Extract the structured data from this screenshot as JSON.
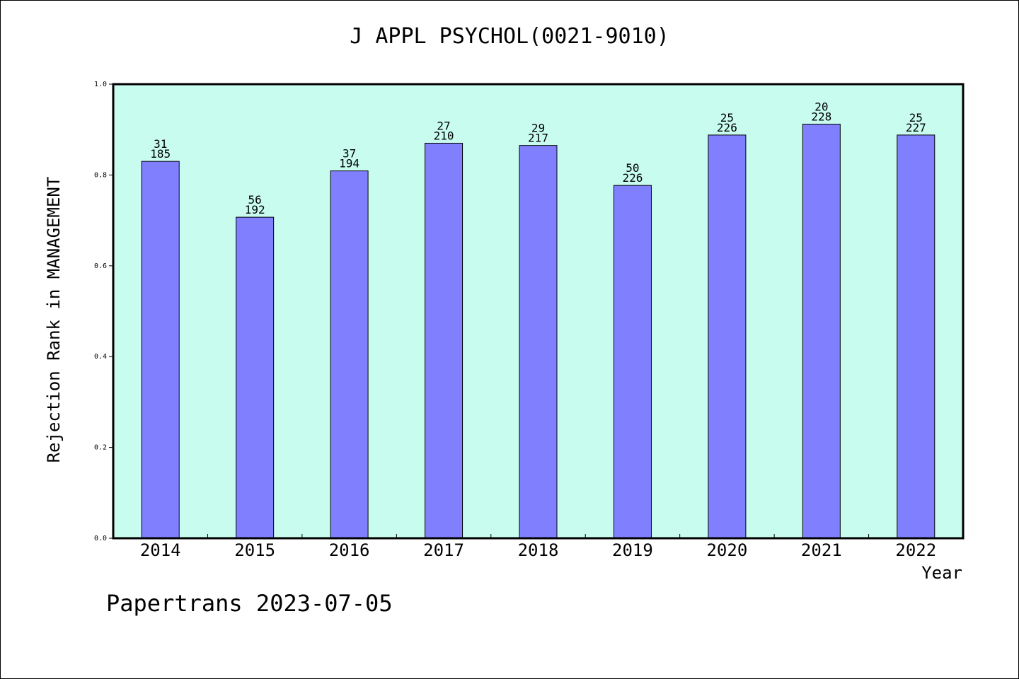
{
  "footer": "Papertrans 2023-07-05",
  "colors": {
    "plot_background": "#c8fcef",
    "bar_fill": "#8080ff",
    "bar_stroke": "#000000"
  },
  "chart_data": {
    "type": "bar",
    "title": "J APPL PSYCHOL(0021-9010)",
    "xlabel": "Year",
    "ylabel": "Rejection Rank in MANAGEMENT",
    "ylim": [
      0,
      1.0
    ],
    "yticks": [
      "0.0",
      "0.2",
      "0.4",
      "0.6",
      "0.8",
      "1.0"
    ],
    "grid": false,
    "categories": [
      "2014",
      "2015",
      "2016",
      "2017",
      "2018",
      "2019",
      "2020",
      "2021",
      "2022"
    ],
    "values": [
      0.83,
      0.707,
      0.809,
      0.87,
      0.865,
      0.777,
      0.888,
      0.912,
      0.888
    ],
    "rank_labels": [
      "31",
      "56",
      "37",
      "27",
      "29",
      "50",
      "25",
      "20",
      "25"
    ],
    "total_labels": [
      "185",
      "192",
      "194",
      "210",
      "217",
      "226",
      "226",
      "228",
      "227"
    ]
  }
}
